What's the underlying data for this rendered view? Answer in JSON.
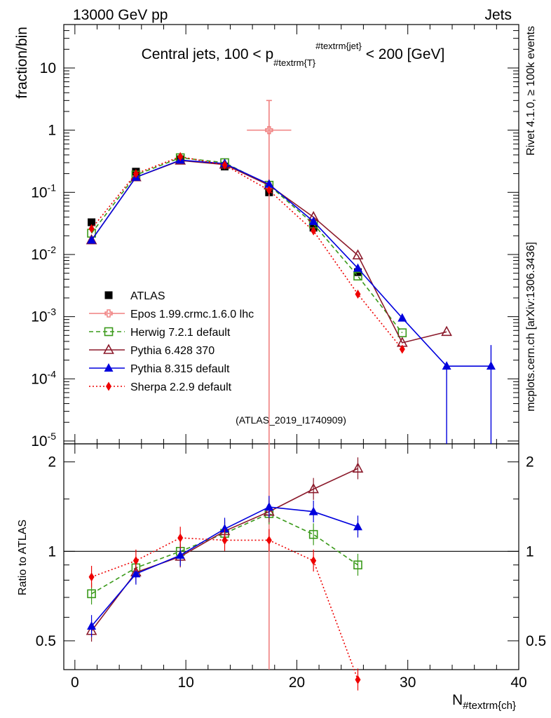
{
  "header": {
    "left": "13000 GeV pp",
    "right": "Jets"
  },
  "side_labels": {
    "rivet": "Rivet 4.1.0, ≥ 100k events",
    "mcplots": "mcplots.cern.ch [arXiv:1306.3436]"
  },
  "chart_data": {
    "type": "line",
    "title": "Central jets, 100 < p_{#textrm{T}}^{#textrm{jet}} < 200 [GeV]",
    "title_parts": {
      "pre": "Central jets, 100 < p",
      "sub": "#textrm{T}",
      "sup": "#textrm{jet}",
      "post": " < 200 [GeV]"
    },
    "analysis_tag": "(ATLAS_2019_I1740909)",
    "xlabel": "N",
    "xlabel_sub": "#textrm{ch}",
    "ylabel": "fraction/bin",
    "ratio_ylabel": "Ratio to ATLAS",
    "xlim": [
      -1,
      40
    ],
    "ylim": [
      9e-06,
      50
    ],
    "ratio_ylim": [
      0.4,
      2.3
    ],
    "x_ticks": [
      "0",
      "10",
      "20",
      "30",
      "40"
    ],
    "y_ticks": [
      "10",
      "1",
      "10^{-1}",
      "10^{-2}",
      "10^{-3}",
      "10^{-4}",
      "10^{-5}"
    ],
    "ratio_ticks": [
      "2",
      "1",
      "0.5"
    ],
    "series": [
      {
        "name": "ATLAS",
        "color": "#000000",
        "marker": "square-filled",
        "x": [
          1.5,
          5.5,
          9.5,
          13.5,
          17.5,
          21.5,
          25.5
        ],
        "y": [
          0.033,
          0.215,
          0.34,
          0.26,
          0.1,
          0.027,
          0.0052
        ]
      },
      {
        "name": "Epos 1.99.crmc.1.6.0 lhc",
        "color": "#f08080",
        "marker": "cross-open",
        "x": [
          17.5
        ],
        "y": [
          1.0
        ],
        "yerr_low": [
          1.0
        ],
        "yerr_high": [
          2.0
        ],
        "xerr": [
          2.0
        ]
      },
      {
        "name": "Herwig 7.2.1 default",
        "color": "#3a9a1a",
        "marker": "square-open",
        "dash": "6,4",
        "x": [
          1.5,
          5.5,
          9.5,
          13.5,
          17.5,
          21.5,
          25.5,
          29.5
        ],
        "y": [
          0.022,
          0.19,
          0.36,
          0.3,
          0.13,
          0.031,
          0.0045,
          0.00055
        ],
        "ratio": [
          0.72,
          0.88,
          1.0,
          1.15,
          1.34,
          1.14,
          0.9
        ]
      },
      {
        "name": "Pythia 6.428 370",
        "color": "#8b1a2b",
        "marker": "triangle-open",
        "x": [
          1.5,
          5.5,
          9.5,
          13.5,
          17.5,
          21.5,
          25.5,
          29.5,
          33.5
        ],
        "y": [
          0.017,
          0.175,
          0.325,
          0.28,
          0.13,
          0.04,
          0.0097,
          0.00038,
          0.00057
        ],
        "ratio": [
          0.54,
          0.85,
          0.96,
          1.17,
          1.36,
          1.62,
          1.9
        ]
      },
      {
        "name": "Pythia 8.315 default",
        "color": "#0000dd",
        "marker": "triangle-filled",
        "x": [
          1.5,
          5.5,
          9.5,
          13.5,
          17.5,
          21.5,
          25.5,
          29.5,
          33.5,
          37.5
        ],
        "y": [
          0.017,
          0.175,
          0.33,
          0.29,
          0.135,
          0.034,
          0.006,
          0.00095,
          0.00016,
          0.00016
        ],
        "ratio": [
          0.56,
          0.84,
          0.97,
          1.19,
          1.41,
          1.36,
          1.21
        ]
      },
      {
        "name": "Sherpa 2.2.9 default",
        "color": "#ee0000",
        "marker": "diamond-filled",
        "dash": "2,3",
        "x": [
          1.5,
          5.5,
          9.5,
          13.5,
          17.5,
          21.5,
          25.5,
          29.5
        ],
        "y": [
          0.026,
          0.2,
          0.375,
          0.275,
          0.108,
          0.024,
          0.0023,
          0.0003
        ],
        "ratio": [
          0.82,
          0.93,
          1.11,
          1.09,
          1.09,
          0.93,
          0.37
        ]
      }
    ]
  }
}
